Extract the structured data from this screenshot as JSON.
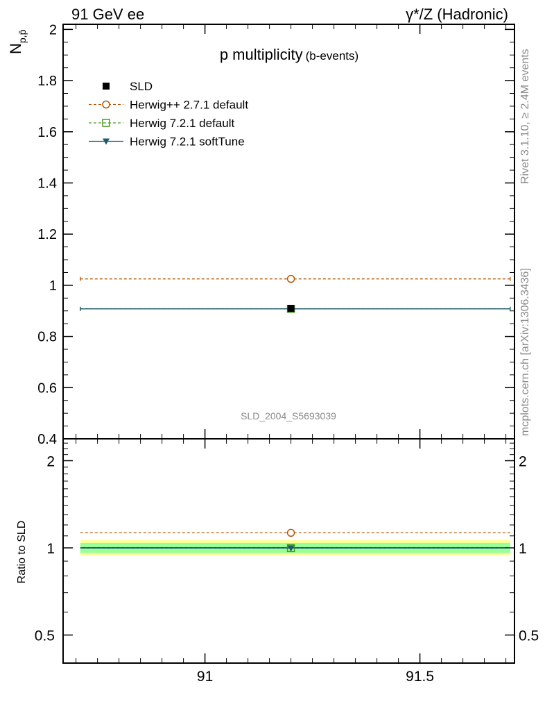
{
  "header": {
    "left": "91 GeV ee",
    "right": "γ*/Z (Hadronic)"
  },
  "side": {
    "rivet": "Rivet 3.1.10, ≥ 2.4M events",
    "mcplots": "mcplots.cern.ch [arXiv:1306.3436]"
  },
  "chart_data": [
    {
      "panel": "main",
      "type": "scatter",
      "title": "p multiplicity",
      "title_suffix": "(b-events)",
      "ylabel_main": "N",
      "ylabel_sub": "p,p̄",
      "analysis_id": "SLD_2004_S5693039",
      "xlim": [
        90.67,
        91.72
      ],
      "ylim": [
        0.4,
        2.02
      ],
      "yticks": [
        {
          "v": 0.4,
          "label": "0.4"
        },
        {
          "v": 0.6,
          "label": "0.6"
        },
        {
          "v": 0.8,
          "label": "0.8"
        },
        {
          "v": 1.0,
          "label": "1"
        },
        {
          "v": 1.2,
          "label": "1.2"
        },
        {
          "v": 1.4,
          "label": "1.4"
        },
        {
          "v": 1.6,
          "label": "1.6"
        },
        {
          "v": 1.8,
          "label": "1.8"
        },
        {
          "v": 2.0,
          "label": "2"
        }
      ],
      "legend_position": "top-left",
      "series": [
        {
          "name": "SLD",
          "kind": "data",
          "marker": "filled-square",
          "color": "#000000",
          "x": 91.2,
          "xerr": [
            90.71,
            91.71
          ],
          "y": 0.91
        },
        {
          "name": "Herwig++ 2.7.1 default",
          "kind": "mc",
          "marker": "open-circle",
          "line": "dashed",
          "color": "#b35806",
          "x": 91.2,
          "xerr": [
            90.71,
            91.71
          ],
          "y": 1.025
        },
        {
          "name": "Herwig 7.2.1 default",
          "kind": "mc",
          "marker": "open-square",
          "line": "dashed",
          "color": "#4a9a1e",
          "x": 91.2,
          "xerr": [
            90.71,
            91.71
          ],
          "y": 0.908
        },
        {
          "name": "Herwig 7.2.1 softTune",
          "kind": "mc",
          "marker": "filled-triangle-down",
          "line": "solid",
          "color": "#1d5a6b",
          "x": 91.2,
          "xerr": [
            90.71,
            91.71
          ],
          "y": 0.908
        }
      ]
    },
    {
      "panel": "ratio",
      "type": "scatter",
      "ylabel": "Ratio to SLD",
      "log_y": true,
      "xlim": [
        90.67,
        91.72
      ],
      "ylim": [
        0.4,
        2.38
      ],
      "xticks": [
        {
          "v": 91.0,
          "label": "91"
        },
        {
          "v": 91.5,
          "label": "91.5"
        }
      ],
      "yticks": [
        {
          "v": 0.5,
          "label": "0.5"
        },
        {
          "v": 1.0,
          "label": "1"
        },
        {
          "v": 2.0,
          "label": "2"
        }
      ],
      "bands": [
        {
          "lo": 0.94,
          "hi": 1.065,
          "color": "#ffff99"
        },
        {
          "lo": 0.96,
          "hi": 1.04,
          "color": "#99ff99"
        }
      ],
      "series": [
        {
          "name": "Herwig++ 2.7.1 default",
          "color": "#b35806",
          "line": "dashed",
          "marker": "open-circle",
          "x": 91.2,
          "xerr": [
            90.71,
            91.71
          ],
          "y": 1.127
        },
        {
          "name": "Herwig 7.2.1 default",
          "color": "#4a9a1e",
          "line": "dashed",
          "marker": "open-square",
          "x": 91.2,
          "xerr": [
            90.71,
            91.71
          ],
          "y": 0.998
        },
        {
          "name": "Herwig 7.2.1 softTune",
          "color": "#1d5a6b",
          "line": "solid",
          "marker": "filled-triangle-down",
          "x": 91.2,
          "xerr": [
            90.71,
            91.71
          ],
          "y": 0.998
        }
      ]
    }
  ]
}
